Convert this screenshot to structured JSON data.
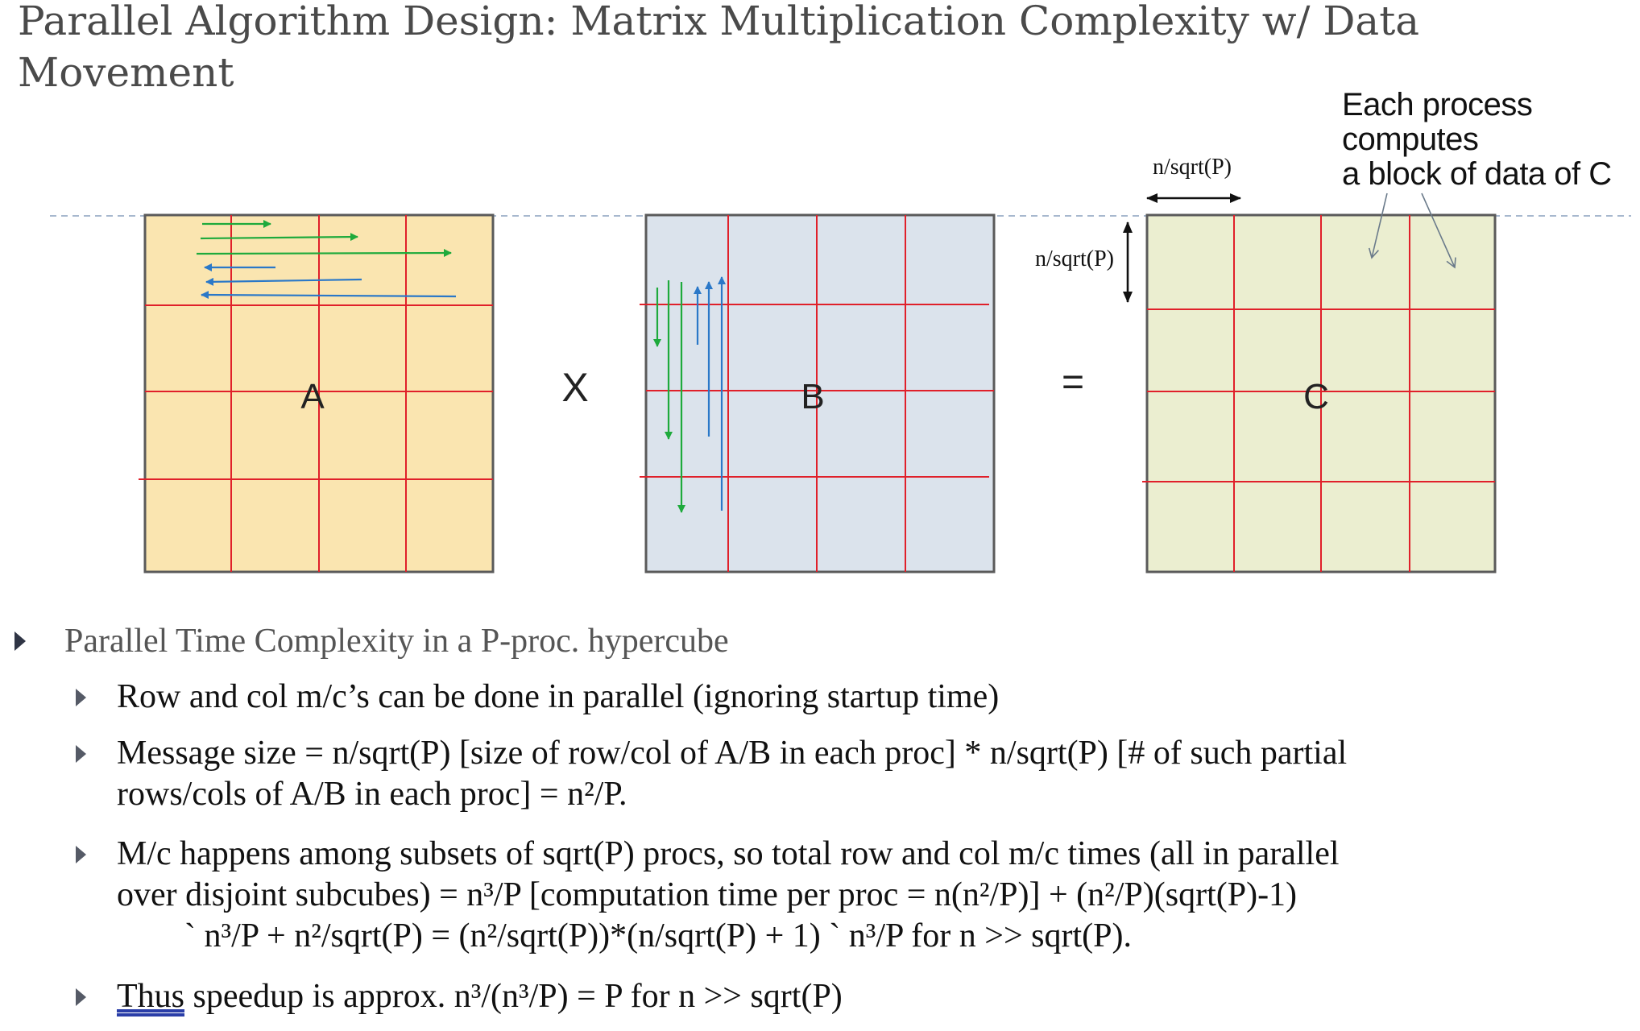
{
  "slide": {
    "title_line1": "Parallel Algorithm Design: Matrix Multiplication Complexity w/ Data",
    "title_line2": "Movement"
  },
  "diagram": {
    "matrix_a_label": "A",
    "matrix_b_label": "B",
    "matrix_c_label": "C",
    "times_symbol": "X",
    "equals_symbol": "=",
    "block_width_label": "n/sqrt(P)",
    "block_height_label": "n/sqrt(P)",
    "annotation_line1": "Each process",
    "annotation_line2": "computes",
    "annotation_line3": "a block of data of C",
    "colors": {
      "matrix_a_fill": "#fae5b0",
      "matrix_b_fill": "#dbe3ec",
      "matrix_c_fill": "#ebeed0",
      "grid_line": "#e0202a",
      "border": "#5a5a5a",
      "green_arrow": "#1eaa3c",
      "blue_arrow": "#2a78c8"
    }
  },
  "bullets": {
    "main": "Parallel Time Complexity in a P-proc. hypercube",
    "sub1": "Row and col m/c’s can be done in parallel (ignoring startup time)",
    "sub2_line1": "Message size = n/sqrt(P) [size of row/col of A/B in each proc] * n/sqrt(P) [# of such partial",
    "sub2_line2": "rows/cols of A/B in each proc] = n²/P.",
    "sub3_line1": "M/c happens among subsets of sqrt(P) procs, so total row and col m/c times (all in parallel",
    "sub3_line2": "over disjoint subcubes) = n³/P [computation time per proc = n(n²/P)] + (n²/P)(sqrt(P)-1)",
    "sub3_line3": "` n³/P + n²/sqrt(P) = (n²/sqrt(P))*(n/sqrt(P) + 1) ` n³/P for n >> sqrt(P).",
    "sub4_underlined": "Thus",
    "sub4_rest": " speedup is approx. n³/(n³/P) = P for n >> sqrt(P)"
  }
}
